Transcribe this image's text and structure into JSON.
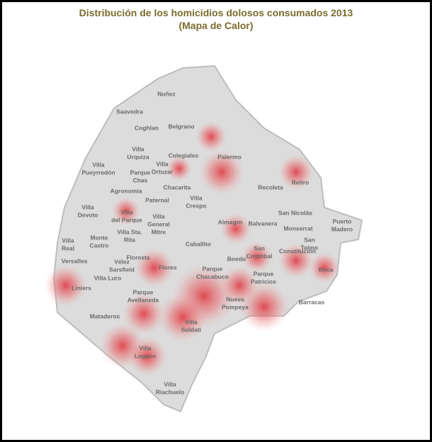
{
  "title": "Distribución de los homicidios dolosos consumados 2013",
  "subtitle": "(Mapa de Calor)",
  "neighborhoods": [
    [
      "Nuñez"
    ],
    [
      "Saavedra"
    ],
    [
      "Coghlan"
    ],
    [
      "Belgrano"
    ],
    [
      "Villa",
      "Urquiza"
    ],
    [
      "Colegiales"
    ],
    [
      "Palermo"
    ],
    [
      "Villa",
      "Pueyrredón"
    ],
    [
      "Parque",
      "Chas"
    ],
    [
      "Villa",
      "Ortuzar"
    ],
    [
      "Chacarita"
    ],
    [
      "Recoleta"
    ],
    [
      "Retiro"
    ],
    [
      "Agronomia"
    ],
    [
      "Villa",
      "Devoto"
    ],
    [
      "Paternal"
    ],
    [
      "Villa",
      "Crespo"
    ],
    [
      "San Nicolás"
    ],
    [
      "Villa",
      "del Parque"
    ],
    [
      "Villa",
      "General",
      "Mitre"
    ],
    [
      "Almagro"
    ],
    [
      "Balvanera"
    ],
    [
      "Monserrat"
    ],
    [
      "Puerto",
      "Madero"
    ],
    [
      "Villa",
      "Real"
    ],
    [
      "Monte",
      "Castro"
    ],
    [
      "Villa Sta.",
      "Rita"
    ],
    [
      "Caballito"
    ],
    [
      "San",
      "Telmo"
    ],
    [
      "San",
      "Cristóbal"
    ],
    [
      "Constitución"
    ],
    [
      "Boca"
    ],
    [
      "Floresta"
    ],
    [
      "Versalles"
    ],
    [
      "Vélez",
      "Sarsfield"
    ],
    [
      "Flores"
    ],
    [
      "Parque",
      "Chacabuco"
    ],
    [
      "Boedo"
    ],
    [
      "Parque",
      "Patricios"
    ],
    [
      "Villa Luro"
    ],
    [
      "Liniers"
    ],
    [
      "Barracas"
    ],
    [
      "Parque",
      "Avellaneda"
    ],
    [
      "Nueva",
      "Pompeya"
    ],
    [
      "Mataderos"
    ],
    [
      "Villa",
      "Soldati"
    ],
    [
      "Villa",
      "Lugano"
    ],
    [
      "Villa",
      "Riachuelo"
    ]
  ]
}
